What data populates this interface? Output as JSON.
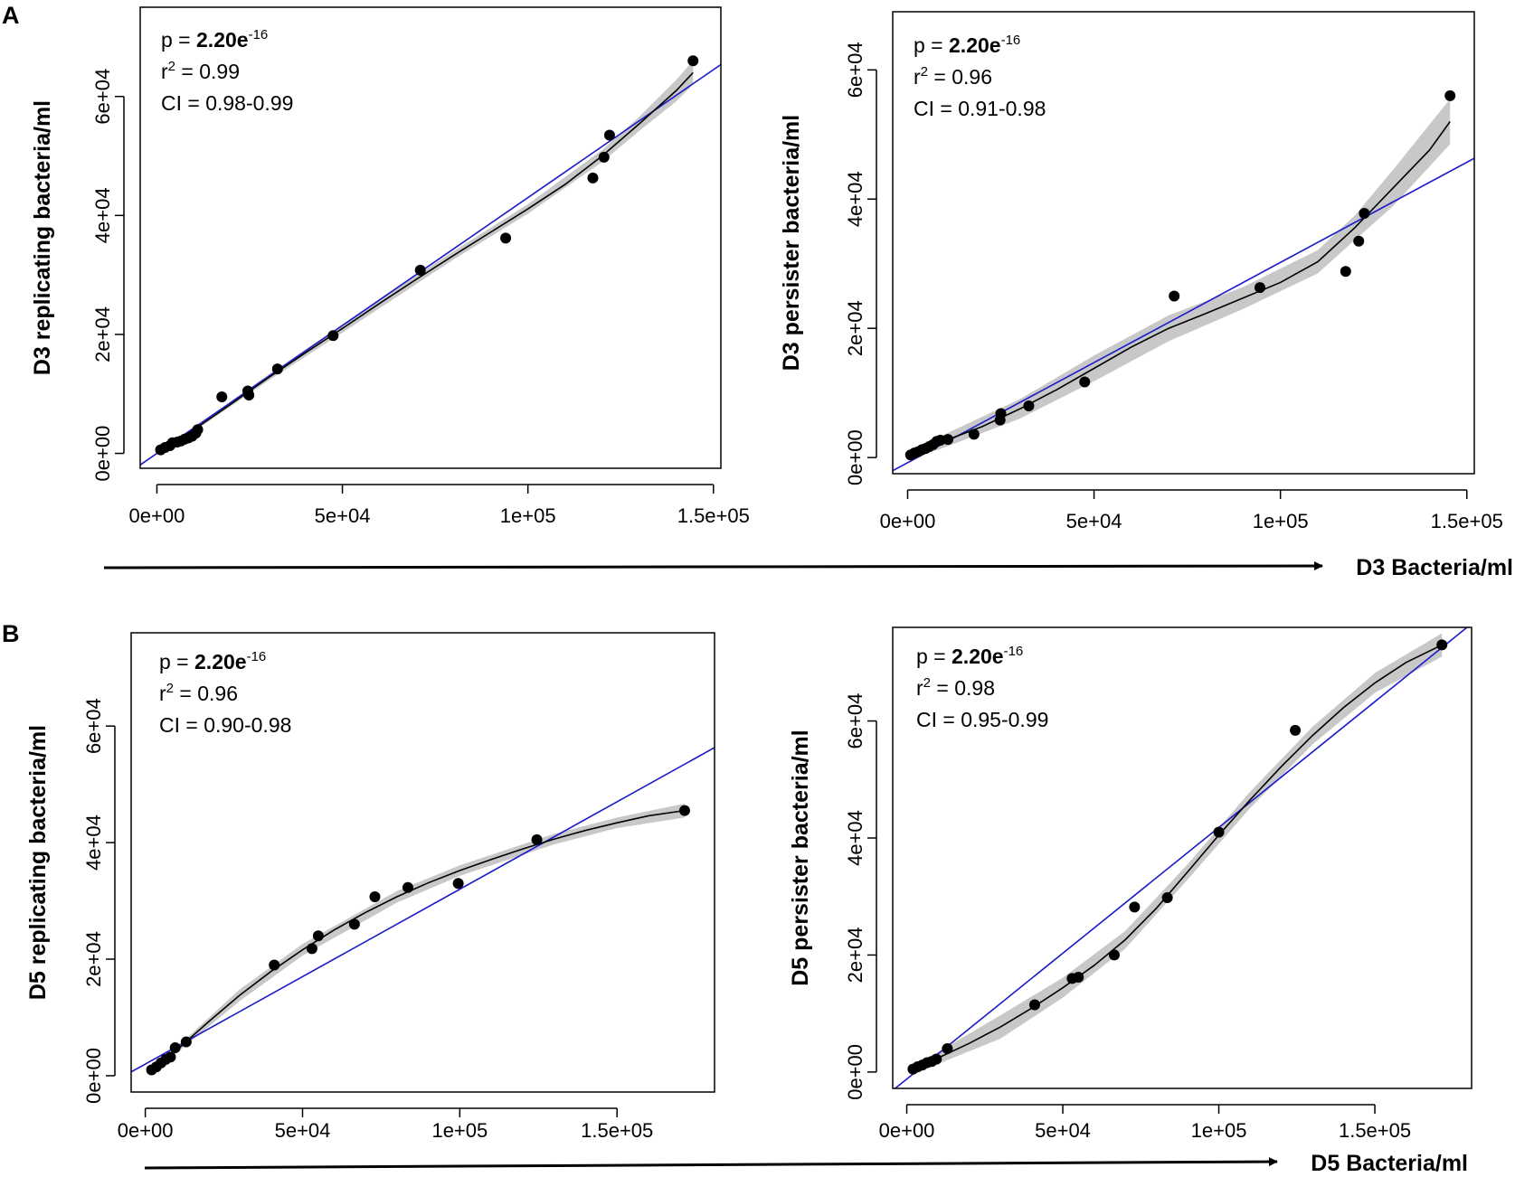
{
  "panels": [
    {
      "letter": "A",
      "shared_xlabel": "D3 Bacteria/ml"
    },
    {
      "letter": "B",
      "shared_xlabel": "D5 Bacteria/ml"
    }
  ],
  "colors": {
    "points": "#000000",
    "loess": "#000000",
    "band": "#c8c8c8",
    "regression": "#1a1acc"
  },
  "chart_data": [
    {
      "type": "scatter",
      "title": "",
      "xlabel": "",
      "ylabel": "D3 replicating bacteria/ml",
      "xlim": [
        -4500,
        152000
      ],
      "ylim": [
        -2500,
        75000
      ],
      "xticks": [
        0,
        50000,
        100000,
        150000
      ],
      "xtick_labels": [
        "0e+00",
        "5e+04",
        "1e+05",
        "1.5e+05"
      ],
      "yticks": [
        0,
        20000,
        40000,
        60000
      ],
      "ytick_labels": [
        "0e+00",
        "2e+04",
        "4e+04",
        "6e+04"
      ],
      "stats": {
        "p_prefix": "p = ",
        "p_value": "2.20e",
        "p_exp": "-16",
        "r2_prefix": "r",
        "r2_value": "= 0.99",
        "ci": "CI = 0.98-0.99"
      },
      "points": [
        [
          1000,
          600
        ],
        [
          2200,
          1000
        ],
        [
          3500,
          1300
        ],
        [
          4200,
          1800
        ],
        [
          5500,
          1900
        ],
        [
          6500,
          2100
        ],
        [
          7500,
          2400
        ],
        [
          8500,
          2600
        ],
        [
          9500,
          2900
        ],
        [
          10500,
          3400
        ],
        [
          11000,
          4000
        ],
        [
          17500,
          9500
        ],
        [
          24500,
          10500
        ],
        [
          24800,
          9800
        ],
        [
          32500,
          14200
        ],
        [
          47500,
          19800
        ],
        [
          71000,
          30800
        ],
        [
          94000,
          36200
        ],
        [
          117500,
          46300
        ],
        [
          120500,
          49800
        ],
        [
          122000,
          53500
        ],
        [
          144500,
          66000
        ]
      ],
      "regression": {
        "slope": 0.43,
        "intercept": 0
      },
      "smooth": [
        [
          1000,
          500
        ],
        [
          10000,
          4000
        ],
        [
          20000,
          8300
        ],
        [
          30000,
          12700
        ],
        [
          40000,
          16900
        ],
        [
          50000,
          21000
        ],
        [
          60000,
          25200
        ],
        [
          70000,
          29300
        ],
        [
          80000,
          33300
        ],
        [
          90000,
          37200
        ],
        [
          100000,
          41100
        ],
        [
          110000,
          45200
        ],
        [
          120000,
          50000
        ],
        [
          130000,
          55400
        ],
        [
          140000,
          61000
        ],
        [
          144500,
          64000
        ]
      ],
      "band": [
        [
          1000,
          300,
          800
        ],
        [
          10000,
          3700,
          4300
        ],
        [
          30000,
          12200,
          13200
        ],
        [
          50000,
          20300,
          21700
        ],
        [
          80000,
          32600,
          34000
        ],
        [
          100000,
          40300,
          41900
        ],
        [
          120000,
          49000,
          51000
        ],
        [
          130000,
          54200,
          56600
        ],
        [
          140000,
          59200,
          62800
        ],
        [
          144500,
          62000,
          66000
        ]
      ]
    },
    {
      "type": "scatter",
      "title": "",
      "xlabel": "",
      "ylabel": "D3 persister bacteria/ml",
      "xlim": [
        -4000,
        152000
      ],
      "ylim": [
        -2500,
        69000
      ],
      "xticks": [
        0,
        50000,
        100000,
        150000
      ],
      "xtick_labels": [
        "0e+00",
        "5e+04",
        "1e+05",
        "1.5e+05"
      ],
      "yticks": [
        0,
        20000,
        40000,
        60000
      ],
      "ytick_labels": [
        "0e+00",
        "2e+04",
        "4e+04",
        "6e+04"
      ],
      "stats": {
        "p_prefix": "p = ",
        "p_value": "2.20e",
        "p_exp": "-16",
        "r2_prefix": "r",
        "r2_value": "= 0.96",
        "ci": "CI = 0.91-0.98"
      },
      "points": [
        [
          800,
          400
        ],
        [
          1800,
          700
        ],
        [
          2800,
          900
        ],
        [
          3800,
          1200
        ],
        [
          4800,
          1400
        ],
        [
          5800,
          1700
        ],
        [
          6800,
          2000
        ],
        [
          7800,
          2500
        ],
        [
          8800,
          2700
        ],
        [
          10800,
          2800
        ],
        [
          17800,
          3600
        ],
        [
          24800,
          5800
        ],
        [
          25000,
          6800
        ],
        [
          32500,
          8000
        ],
        [
          47500,
          11700
        ],
        [
          71500,
          25000
        ],
        [
          94500,
          26300
        ],
        [
          117500,
          28800
        ],
        [
          121000,
          33500
        ],
        [
          122500,
          37800
        ],
        [
          145500,
          56000
        ]
      ],
      "regression": {
        "slope": 0.31,
        "intercept": -800
      },
      "smooth": [
        [
          800,
          300
        ],
        [
          10000,
          2600
        ],
        [
          20000,
          4800
        ],
        [
          30000,
          7500
        ],
        [
          40000,
          10500
        ],
        [
          50000,
          13800
        ],
        [
          60000,
          17100
        ],
        [
          70000,
          20000
        ],
        [
          80000,
          22300
        ],
        [
          90000,
          24700
        ],
        [
          100000,
          27100
        ],
        [
          110000,
          30300
        ],
        [
          120000,
          35600
        ],
        [
          130000,
          41600
        ],
        [
          140000,
          47600
        ],
        [
          145500,
          52000
        ]
      ],
      "band": [
        [
          800,
          -300,
          900
        ],
        [
          10000,
          1600,
          3600
        ],
        [
          30000,
          6000,
          9000
        ],
        [
          50000,
          11800,
          15800
        ],
        [
          70000,
          18000,
          22000
        ],
        [
          90000,
          23000,
          26400
        ],
        [
          110000,
          28500,
          32100
        ],
        [
          120000,
          33700,
          37500
        ],
        [
          130000,
          38800,
          44400
        ],
        [
          145500,
          48500,
          55500
        ]
      ]
    },
    {
      "type": "scatter",
      "title": "",
      "xlabel": "",
      "ylabel": "D5 replicating bacteria/ml",
      "xlim": [
        -4500,
        181000
      ],
      "ylim": [
        -2800,
        76000
      ],
      "xticks": [
        0,
        50000,
        100000,
        150000
      ],
      "xtick_labels": [
        "0e+00",
        "5e+04",
        "1e+05",
        "1.5e+05"
      ],
      "yticks": [
        0,
        20000,
        40000,
        60000
      ],
      "ytick_labels": [
        "0e+00",
        "2e+04",
        "4e+04",
        "6e+04"
      ],
      "stats": {
        "p_prefix": "p = ",
        "p_value": "2.20e",
        "p_exp": "-16",
        "r2_prefix": "r",
        "r2_value": "= 0.96",
        "ci": "CI = 0.90-0.98"
      },
      "points": [
        [
          2000,
          1000
        ],
        [
          3500,
          1500
        ],
        [
          5000,
          2200
        ],
        [
          6500,
          2800
        ],
        [
          8000,
          3200
        ],
        [
          9500,
          4800
        ],
        [
          13000,
          5800
        ],
        [
          41000,
          19000
        ],
        [
          53000,
          21800
        ],
        [
          55000,
          24000
        ],
        [
          66500,
          26000
        ],
        [
          73000,
          30700
        ],
        [
          83500,
          32300
        ],
        [
          99500,
          33000
        ],
        [
          124500,
          40500
        ],
        [
          171500,
          45500
        ]
      ],
      "regression": {
        "slope": 0.3,
        "intercept": 2000
      },
      "smooth": [
        [
          2000,
          800
        ],
        [
          10000,
          4400
        ],
        [
          20000,
          9200
        ],
        [
          30000,
          13800
        ],
        [
          40000,
          17900
        ],
        [
          50000,
          21600
        ],
        [
          60000,
          25000
        ],
        [
          70000,
          28000
        ],
        [
          80000,
          30700
        ],
        [
          90000,
          33100
        ],
        [
          100000,
          35200
        ],
        [
          110000,
          37100
        ],
        [
          120000,
          38900
        ],
        [
          130000,
          40600
        ],
        [
          140000,
          42100
        ],
        [
          150000,
          43400
        ],
        [
          160000,
          44600
        ],
        [
          171500,
          45500
        ]
      ],
      "band": [
        [
          2000,
          300,
          1300
        ],
        [
          10000,
          3900,
          4900
        ],
        [
          30000,
          12800,
          14800
        ],
        [
          50000,
          20600,
          22600
        ],
        [
          80000,
          29700,
          31700
        ],
        [
          100000,
          34300,
          36100
        ],
        [
          130000,
          39700,
          41500
        ],
        [
          150000,
          42500,
          44300
        ],
        [
          171500,
          44300,
          46700
        ]
      ]
    },
    {
      "type": "scatter",
      "title": "",
      "xlabel": "",
      "ylabel": "D5 persister bacteria/ml",
      "xlim": [
        -4500,
        181000
      ],
      "ylim": [
        -2800,
        76000
      ],
      "xticks": [
        0,
        50000,
        100000,
        150000
      ],
      "xtick_labels": [
        "0e+00",
        "5e+04",
        "1e+05",
        "1.5e+05"
      ],
      "yticks": [
        0,
        20000,
        40000,
        60000
      ],
      "ytick_labels": [
        "0e+00",
        "2e+04",
        "4e+04",
        "6e+04"
      ],
      "stats": {
        "p_prefix": "p = ",
        "p_value": "2.20e",
        "p_exp": "-16",
        "r2_prefix": "r",
        "r2_value": "= 0.98",
        "ci": "CI = 0.95-0.99"
      },
      "points": [
        [
          2000,
          500
        ],
        [
          3500,
          900
        ],
        [
          5000,
          1200
        ],
        [
          6500,
          1600
        ],
        [
          8000,
          1800
        ],
        [
          9500,
          2200
        ],
        [
          13000,
          4000
        ],
        [
          41000,
          11500
        ],
        [
          53000,
          16000
        ],
        [
          55000,
          16200
        ],
        [
          66500,
          20000
        ],
        [
          73000,
          28200
        ],
        [
          83500,
          29800
        ],
        [
          100000,
          41000
        ],
        [
          124500,
          58400
        ],
        [
          171500,
          73000
        ]
      ],
      "regression": {
        "slope": 0.43,
        "intercept": -1200
      },
      "smooth": [
        [
          2000,
          400
        ],
        [
          10000,
          2400
        ],
        [
          20000,
          4900
        ],
        [
          30000,
          7700
        ],
        [
          40000,
          10900
        ],
        [
          50000,
          14400
        ],
        [
          60000,
          18200
        ],
        [
          70000,
          22600
        ],
        [
          80000,
          28000
        ],
        [
          90000,
          34200
        ],
        [
          100000,
          40500
        ],
        [
          110000,
          46500
        ],
        [
          120000,
          52200
        ],
        [
          130000,
          57500
        ],
        [
          140000,
          62300
        ],
        [
          150000,
          66500
        ],
        [
          160000,
          70000
        ],
        [
          171500,
          73000
        ]
      ],
      "band": [
        [
          2000,
          -500,
          1300
        ],
        [
          10000,
          1400,
          3400
        ],
        [
          30000,
          5700,
          9700
        ],
        [
          50000,
          12700,
          16100
        ],
        [
          70000,
          21100,
          24100
        ],
        [
          90000,
          32900,
          35500
        ],
        [
          110000,
          45100,
          47900
        ],
        [
          130000,
          56000,
          59000
        ],
        [
          150000,
          64800,
          68200
        ],
        [
          171500,
          71000,
          75000
        ]
      ]
    }
  ]
}
